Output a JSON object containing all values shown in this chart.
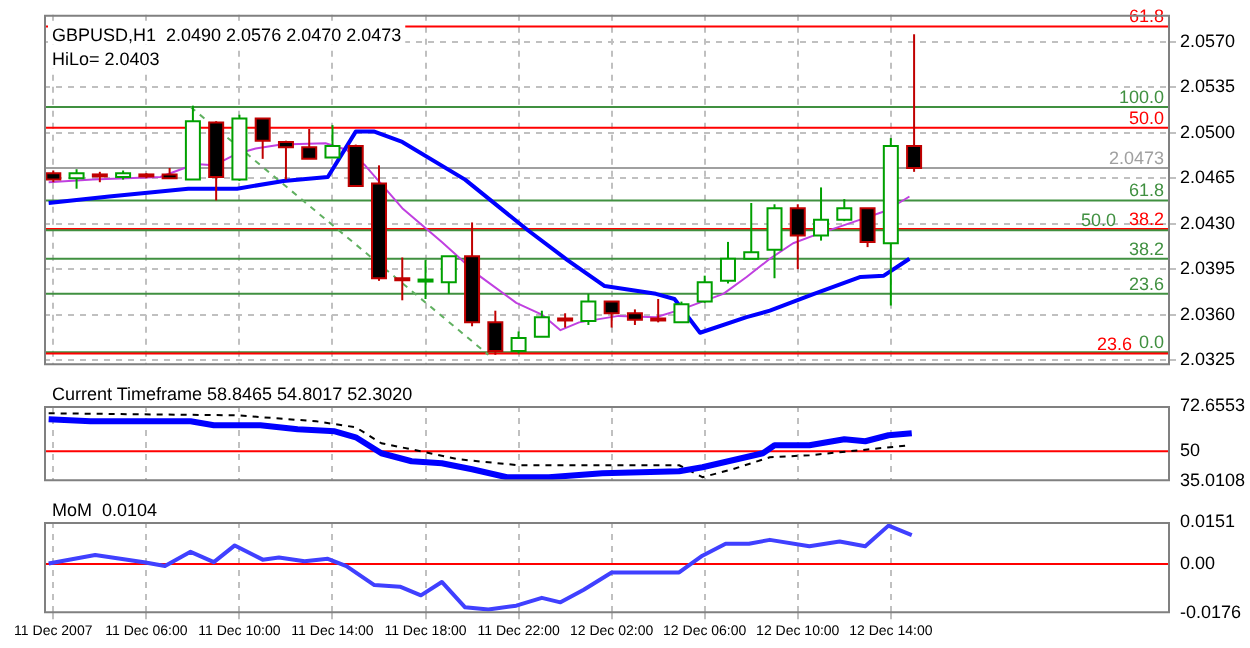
{
  "chart_data": [
    {
      "type": "candlestick",
      "title": "GBPUSD,H1  2.0490 2.0576 2.0470 2.0473",
      "annotations": [
        "HiLo= 2.0403",
        {
          "text": "61.8",
          "y": 2.0582
        },
        {
          "text": "100.0",
          "y": 2.052
        },
        {
          "text": "50.0",
          "y": 2.0504
        },
        {
          "text": "61.8",
          "y": 2.0448
        },
        {
          "text": "38.2",
          "y": 2.0426
        },
        {
          "text": "50.0",
          "y": 2.0425
        },
        {
          "text": "38.2",
          "y": 2.0403
        },
        {
          "text": "23.6",
          "y": 2.0376
        },
        {
          "text": "0.0",
          "y": 2.0331
        },
        {
          "text": "23.6",
          "y": 2.033
        }
      ],
      "x": [
        "2007-12-11T02:00",
        "2007-12-11T03:00",
        "2007-12-11T04:00",
        "2007-12-11T05:00",
        "2007-12-11T06:00",
        "2007-12-11T07:00",
        "2007-12-11T08:00",
        "2007-12-11T09:00",
        "2007-12-11T10:00",
        "2007-12-11T11:00",
        "2007-12-11T12:00",
        "2007-12-11T13:00",
        "2007-12-11T14:00",
        "2007-12-11T15:00",
        "2007-12-11T16:00",
        "2007-12-11T17:00",
        "2007-12-11T18:00",
        "2007-12-11T19:00",
        "2007-12-11T20:00",
        "2007-12-11T21:00",
        "2007-12-11T22:00",
        "2007-12-11T23:00",
        "2007-12-12T00:00",
        "2007-12-12T01:00",
        "2007-12-12T02:00",
        "2007-12-12T03:00",
        "2007-12-12T04:00",
        "2007-12-12T05:00",
        "2007-12-12T06:00",
        "2007-12-12T07:00",
        "2007-12-12T08:00",
        "2007-12-12T09:00",
        "2007-12-12T10:00",
        "2007-12-12T11:00",
        "2007-12-12T12:00",
        "2007-12-12T13:00",
        "2007-12-12T14:00",
        "2007-12-12T15:00"
      ],
      "ohlc": [
        [
          2.0469,
          2.0471,
          2.0462,
          2.0464
        ],
        [
          2.0465,
          2.0472,
          2.0457,
          2.0469
        ],
        [
          2.0468,
          2.047,
          2.0462,
          2.0467
        ],
        [
          2.0466,
          2.0471,
          2.0464,
          2.0469
        ],
        [
          2.0468,
          2.0469,
          2.0465,
          2.0467
        ],
        [
          2.0468,
          2.0473,
          2.0465,
          2.0465
        ],
        [
          2.0464,
          2.0521,
          2.0464,
          2.0509
        ],
        [
          2.0508,
          2.0509,
          2.0448,
          2.0466
        ],
        [
          2.0464,
          2.0514,
          2.0463,
          2.0511
        ],
        [
          2.0511,
          2.0511,
          2.048,
          2.0494
        ],
        [
          2.0493,
          2.0494,
          2.0464,
          2.0489
        ],
        [
          2.0489,
          2.0503,
          2.048,
          2.048
        ],
        [
          2.0481,
          2.0506,
          2.0481,
          2.049
        ],
        [
          2.049,
          2.0491,
          2.0459,
          2.0459
        ],
        [
          2.0461,
          2.0475,
          2.0386,
          2.0388
        ],
        [
          2.0388,
          2.0404,
          2.0371,
          2.0387
        ],
        [
          2.0386,
          2.0402,
          2.0372,
          2.0387
        ],
        [
          2.0385,
          2.0405,
          2.0376,
          2.0405
        ],
        [
          2.0405,
          2.0431,
          2.0351,
          2.0354
        ],
        [
          2.0354,
          2.0363,
          2.0329,
          2.0332
        ],
        [
          2.0332,
          2.0347,
          2.033,
          2.0342
        ],
        [
          2.0343,
          2.0363,
          2.0343,
          2.0358
        ],
        [
          2.0357,
          2.0361,
          2.035,
          2.0356
        ],
        [
          2.0355,
          2.0376,
          2.0352,
          2.037
        ],
        [
          2.037,
          2.037,
          2.035,
          2.0361
        ],
        [
          2.0361,
          2.0364,
          2.0352,
          2.0356
        ],
        [
          2.0357,
          2.0372,
          2.0354,
          2.0356
        ],
        [
          2.0354,
          2.037,
          2.0354,
          2.0368
        ],
        [
          2.037,
          2.039,
          2.0369,
          2.0385
        ],
        [
          2.0386,
          2.0416,
          2.0384,
          2.0403
        ],
        [
          2.0403,
          2.0446,
          2.0403,
          2.0408
        ],
        [
          2.041,
          2.0445,
          2.0388,
          2.0442
        ],
        [
          2.0442,
          2.0445,
          2.0395,
          2.0421
        ],
        [
          2.0421,
          2.0458,
          2.0417,
          2.0433
        ],
        [
          2.0433,
          2.0449,
          2.0432,
          2.0442
        ],
        [
          2.0442,
          2.0442,
          2.0412,
          2.0416
        ],
        [
          2.0415,
          2.0496,
          2.0367,
          2.049
        ],
        [
          2.049,
          2.0576,
          2.047,
          2.0473
        ]
      ],
      "series": [
        {
          "type": "line",
          "color": "#0000ff",
          "x": [
            "2007-12-11T01:48",
            "2007-12-11T04:24",
            "2007-12-11T07:48",
            "2007-12-11T09:54",
            "2007-12-11T11:54",
            "2007-12-11T13:48",
            "2007-12-11T15:00",
            "2007-12-11T15:48",
            "2007-12-11T17:00",
            "2007-12-11T19:42",
            "2007-12-11T22:24",
            "2007-12-12T00:06",
            "2007-12-12T01:42",
            "2007-12-12T03:54",
            "2007-12-12T04:42",
            "2007-12-12T05:48",
            "2007-12-12T07:48",
            "2007-12-12T08:48",
            "2007-12-12T10:42",
            "2007-12-12T12:42",
            "2007-12-12T13:42",
            "2007-12-12T14:48"
          ],
          "values": [
            2.0446,
            2.0451,
            2.0457,
            2.0457,
            2.0463,
            2.0466,
            2.0501,
            2.0501,
            2.0493,
            2.0464,
            2.0425,
            2.0402,
            2.0382,
            2.0376,
            2.0372,
            2.0346,
            2.0358,
            2.0363,
            2.0376,
            2.0389,
            2.039,
            2.0403
          ]
        },
        {
          "type": "line",
          "color": "#c040e0",
          "x": [
            "2007-12-11T01:48",
            "2007-12-11T03:42",
            "2007-12-11T06:36",
            "2007-12-11T08:06",
            "2007-12-11T08:54",
            "2007-12-11T09:54",
            "2007-12-11T10:42",
            "2007-12-11T11:48",
            "2007-12-11T13:42",
            "2007-12-11T14:36",
            "2007-12-11T15:24",
            "2007-12-11T17:00",
            "2007-12-11T18:42",
            "2007-12-11T20:18",
            "2007-12-11T21:54",
            "2007-12-11T23:00",
            "2007-12-11T23:48",
            "2007-12-12T00:36",
            "2007-12-12T02:18",
            "2007-12-12T03:54",
            "2007-12-12T05:00",
            "2007-12-12T06:48",
            "2007-12-12T07:48",
            "2007-12-12T08:48",
            "2007-12-12T09:48",
            "2007-12-12T10:42",
            "2007-12-12T12:30",
            "2007-12-12T13:48",
            "2007-12-12T14:48"
          ],
          "values": [
            2.0462,
            2.0464,
            2.0466,
            2.0476,
            2.0475,
            2.0484,
            2.0488,
            2.0491,
            2.0492,
            2.0487,
            2.0475,
            2.0442,
            2.0416,
            2.039,
            2.0369,
            2.036,
            2.0348,
            2.0354,
            2.0359,
            2.0358,
            2.0364,
            2.0376,
            2.0389,
            2.0403,
            2.0415,
            2.0421,
            2.0432,
            2.044,
            2.0451
          ]
        },
        {
          "type": "line",
          "color": "#60b060",
          "line_style": "dashed",
          "x": [
            "2007-12-11T07:54",
            "2007-12-11T20:42"
          ],
          "values": [
            2.052,
            2.0329
          ]
        }
      ],
      "xlim": [
        "2007-12-11T01:36",
        "2007-12-13T02:00"
      ],
      "xticks": [
        {
          "value": "2007-12-11T02:00",
          "label": null
        },
        {
          "value": "2007-12-11T06:00",
          "label": null
        },
        {
          "value": "2007-12-11T10:00",
          "label": null
        },
        {
          "value": "2007-12-11T14:00",
          "label": null
        },
        {
          "value": "2007-12-11T18:00",
          "label": null
        },
        {
          "value": "2007-12-11T22:00",
          "label": null
        },
        {
          "value": "2007-12-12T02:00",
          "label": null
        },
        {
          "value": "2007-12-12T06:00",
          "label": null
        },
        {
          "value": "2007-12-12T10:00",
          "label": null
        },
        {
          "value": "2007-12-12T14:00",
          "label": null
        }
      ],
      "ylim": [
        2.0321,
        2.0591
      ],
      "yticks": [
        {
          "value": 2.057,
          "label": "2.0570"
        },
        {
          "value": 2.0535,
          "label": "2.0535"
        },
        {
          "value": 2.05,
          "label": "2.0500"
        },
        {
          "value": 2.0465,
          "label": "2.0465"
        },
        {
          "value": 2.043,
          "label": "2.0430"
        },
        {
          "value": 2.0395,
          "label": "2.0395"
        },
        {
          "value": 2.036,
          "label": "2.0360"
        },
        {
          "value": 2.0325,
          "label": "2.0325"
        }
      ],
      "ref_lines": [
        {
          "axis": "y",
          "value": 2.0582,
          "color": "#ff0000"
        },
        {
          "axis": "y",
          "value": 2.052,
          "color": "#409040"
        },
        {
          "axis": "y",
          "value": 2.0504,
          "color": "#ff0000"
        },
        {
          "axis": "y",
          "value": 2.0473,
          "label": "2.0473",
          "color": "#a0a0a0"
        },
        {
          "axis": "y",
          "value": 2.0448,
          "color": "#409040"
        },
        {
          "axis": "y",
          "value": 2.0426,
          "color": "#ff0000"
        },
        {
          "axis": "y",
          "value": 2.0425,
          "color": "#409040"
        },
        {
          "axis": "y",
          "value": 2.0403,
          "color": "#409040"
        },
        {
          "axis": "y",
          "value": 2.0376,
          "color": "#409040"
        },
        {
          "axis": "y",
          "value": 2.0331,
          "color": "#409040"
        },
        {
          "axis": "y",
          "value": 2.033,
          "color": "#ff0000"
        }
      ],
      "grid": true,
      "tick_labels": "y"
    },
    {
      "type": "line",
      "title": "Current Timeframe 58.8465 54.8017 52.3020",
      "series": [
        {
          "type": "line",
          "color": "#0000ff",
          "x": [
            "2007-12-11T01:48",
            "2007-12-11T03:36",
            "2007-12-11T05:54",
            "2007-12-11T07:54",
            "2007-12-11T08:54",
            "2007-12-11T10:54",
            "2007-12-11T12:30",
            "2007-12-11T14:06",
            "2007-12-11T15:00",
            "2007-12-11T16:06",
            "2007-12-11T17:24",
            "2007-12-11T18:42",
            "2007-12-11T20:00",
            "2007-12-11T21:30",
            "2007-12-11T23:18",
            "2007-12-12T01:36",
            "2007-12-12T04:54",
            "2007-12-12T05:54",
            "2007-12-12T08:30",
            "2007-12-12T09:00",
            "2007-12-12T10:30",
            "2007-12-12T12:00",
            "2007-12-12T12:54",
            "2007-12-12T13:54",
            "2007-12-12T14:54"
          ],
          "values": [
            66,
            65,
            65,
            65,
            63,
            63,
            61,
            60,
            57,
            49,
            45,
            44,
            41,
            37,
            37,
            39,
            40,
            42,
            49,
            53,
            53,
            56,
            55,
            58,
            59
          ]
        },
        {
          "type": "line",
          "color": "#000000",
          "line_style": "dashed",
          "x": [
            "2007-12-11T01:48",
            "2007-12-11T09:54",
            "2007-12-11T13:18",
            "2007-12-11T15:00",
            "2007-12-11T16:06",
            "2007-12-11T17:48",
            "2007-12-11T19:24",
            "2007-12-11T22:00",
            "2007-12-12T04:54",
            "2007-12-12T05:54",
            "2007-12-12T07:12",
            "2007-12-12T08:48",
            "2007-12-12T10:30",
            "2007-12-12T13:06",
            "2007-12-12T14:48"
          ],
          "values": [
            69,
            68,
            65,
            62,
            54,
            50,
            46,
            43,
            43,
            37,
            41,
            47,
            48,
            51,
            53
          ]
        }
      ],
      "xlim": [
        "2007-12-11T01:36",
        "2007-12-13T02:00"
      ],
      "xticks": [
        {
          "value": "2007-12-11T02:00",
          "label": null
        },
        {
          "value": "2007-12-11T06:00",
          "label": null
        },
        {
          "value": "2007-12-11T10:00",
          "label": null
        },
        {
          "value": "2007-12-11T14:00",
          "label": null
        },
        {
          "value": "2007-12-11T18:00",
          "label": null
        },
        {
          "value": "2007-12-11T22:00",
          "label": null
        },
        {
          "value": "2007-12-12T02:00",
          "label": null
        },
        {
          "value": "2007-12-12T06:00",
          "label": null
        },
        {
          "value": "2007-12-12T10:00",
          "label": null
        },
        {
          "value": "2007-12-12T14:00",
          "label": null
        }
      ],
      "ylim": [
        35.0108,
        72.6553
      ],
      "yticks": [
        72.6553,
        50,
        35.0108
      ],
      "ref_lines": [
        {
          "axis": "y",
          "value": 50,
          "color": "#ff0000"
        }
      ],
      "grid": "x",
      "tick_labels": "y"
    },
    {
      "type": "line",
      "title": "MoM  0.0104",
      "series": [
        {
          "type": "line",
          "color": "#4040ff",
          "x": [
            "2007-12-11T01:48",
            "2007-12-11T03:48",
            "2007-12-11T05:54",
            "2007-12-11T06:48",
            "2007-12-11T07:54",
            "2007-12-11T08:54",
            "2007-12-11T09:48",
            "2007-12-11T11:00",
            "2007-12-11T11:42",
            "2007-12-11T12:48",
            "2007-12-11T13:48",
            "2007-12-11T14:36",
            "2007-12-11T15:48",
            "2007-12-11T16:54",
            "2007-12-11T17:48",
            "2007-12-11T18:42",
            "2007-12-11T19:42",
            "2007-12-11T20:42",
            "2007-12-11T21:54",
            "2007-12-11T23:00",
            "2007-12-11T23:48",
            "2007-12-12T00:48",
            "2007-12-12T02:00",
            "2007-12-12T04:54",
            "2007-12-12T05:54",
            "2007-12-12T06:54",
            "2007-12-12T07:54",
            "2007-12-12T08:48",
            "2007-12-12T10:30",
            "2007-12-12T11:48",
            "2007-12-12T12:54",
            "2007-12-12T13:54",
            "2007-12-12T14:54"
          ],
          "values": [
            0.0002,
            0.0033,
            0.0007,
            -0.0007,
            0.0044,
            0.0007,
            0.0067,
            0.0016,
            0.0024,
            0.001,
            0.0019,
            -0.0007,
            -0.0075,
            -0.0081,
            -0.0112,
            -0.0064,
            -0.0155,
            -0.0163,
            -0.0149,
            -0.0121,
            -0.0137,
            -0.0092,
            -0.003,
            -0.003,
            0.003,
            0.0073,
            0.0073,
            0.0087,
            0.0064,
            0.0081,
            0.0064,
            0.0138,
            0.0104
          ]
        }
      ],
      "xlim": [
        "2007-12-11T01:36",
        "2007-12-13T02:00"
      ],
      "xticks": [
        {
          "value": "2007-12-11T02:00",
          "label": "11 Dec 2007"
        },
        {
          "value": "2007-12-11T06:00",
          "label": "11 Dec 06:00"
        },
        {
          "value": "2007-12-11T10:00",
          "label": "11 Dec 10:00"
        },
        {
          "value": "2007-12-11T14:00",
          "label": "11 Dec 14:00"
        },
        {
          "value": "2007-12-11T18:00",
          "label": "11 Dec 18:00"
        },
        {
          "value": "2007-12-11T22:00",
          "label": "11 Dec 22:00"
        },
        {
          "value": "2007-12-12T02:00",
          "label": "12 Dec 02:00"
        },
        {
          "value": "2007-12-12T06:00",
          "label": "12 Dec 06:00"
        },
        {
          "value": "2007-12-12T10:00",
          "label": "12 Dec 10:00"
        },
        {
          "value": "2007-12-12T14:00",
          "label": "12 Dec 14:00"
        }
      ],
      "ylim": [
        -0.0176,
        0.0151
      ],
      "yticks": [
        0.0151,
        {
          "value": 0,
          "label": "0.00"
        },
        -0.0176
      ],
      "ref_lines": [
        {
          "axis": "y",
          "value": 0,
          "color": "#ff0000"
        }
      ],
      "grid": "x"
    }
  ]
}
